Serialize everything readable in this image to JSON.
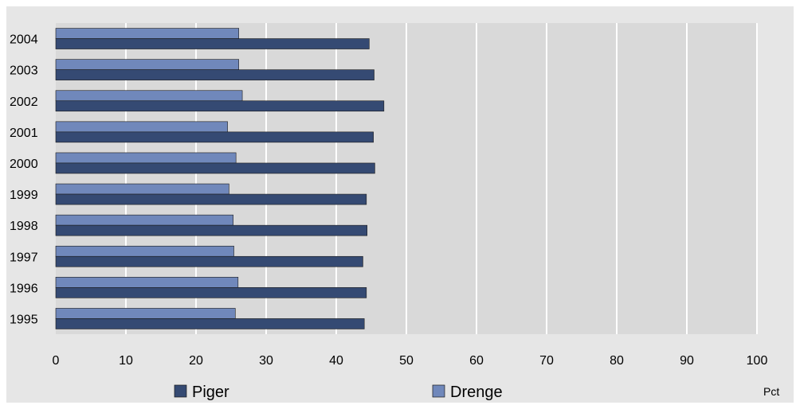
{
  "chart_data": {
    "type": "bar",
    "orientation": "horizontal",
    "categories": [
      "1995",
      "1996",
      "1997",
      "1998",
      "1999",
      "2000",
      "2001",
      "2002",
      "2003",
      "2004"
    ],
    "series": [
      {
        "name": "Drenge",
        "color": "#7088bb",
        "values": [
          25.6,
          26.0,
          25.4,
          25.3,
          24.7,
          25.7,
          24.5,
          26.6,
          26.1,
          26.1
        ]
      },
      {
        "name": "Piger",
        "color": "#354a73",
        "values": [
          44.0,
          44.3,
          43.8,
          44.4,
          44.3,
          45.5,
          45.3,
          46.8,
          45.4,
          44.7
        ]
      }
    ],
    "xlim": [
      0,
      100
    ],
    "xticks": [
      "0",
      "10",
      "20",
      "30",
      "40",
      "50",
      "60",
      "70",
      "80",
      "90",
      "100"
    ],
    "unit_label": "Pct",
    "grid": true,
    "legend_position": "bottom"
  }
}
